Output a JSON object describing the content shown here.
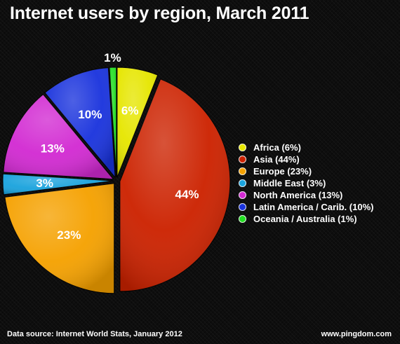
{
  "title": "Internet users by region, March 2011",
  "chart_data": {
    "type": "pie",
    "title": "Internet users by region, March 2011",
    "slices": [
      {
        "name": "Africa",
        "value": 6,
        "label": "6%",
        "legend": "Africa (6%)",
        "color": "#e6e600"
      },
      {
        "name": "Asia",
        "value": 44,
        "label": "44%",
        "legend": "Asia (44%)",
        "color": "#cc2200"
      },
      {
        "name": "Europe",
        "value": 23,
        "label": "23%",
        "legend": "Europe (23%)",
        "color": "#f5a100"
      },
      {
        "name": "Middle East",
        "value": 3,
        "label": "3%",
        "legend": "Middle East (3%)",
        "color": "#1aa3dd"
      },
      {
        "name": "North America",
        "value": 13,
        "label": "13%",
        "legend": "North America (13%)",
        "color": "#d22ad2"
      },
      {
        "name": "Latin America / Carib.",
        "value": 10,
        "label": "10%",
        "legend": "Latin America / Carib. (10%)",
        "color": "#1a33dd"
      },
      {
        "name": "Oceania / Australia",
        "value": 1,
        "label": "1%",
        "legend": "Oceania / Australia (1%)",
        "color": "#22dd22"
      }
    ],
    "legend_placement": "right",
    "exploded": true
  },
  "footer": {
    "source": "Data source: Internet World Stats, January 2012",
    "credit": "www.pingdom.com"
  }
}
